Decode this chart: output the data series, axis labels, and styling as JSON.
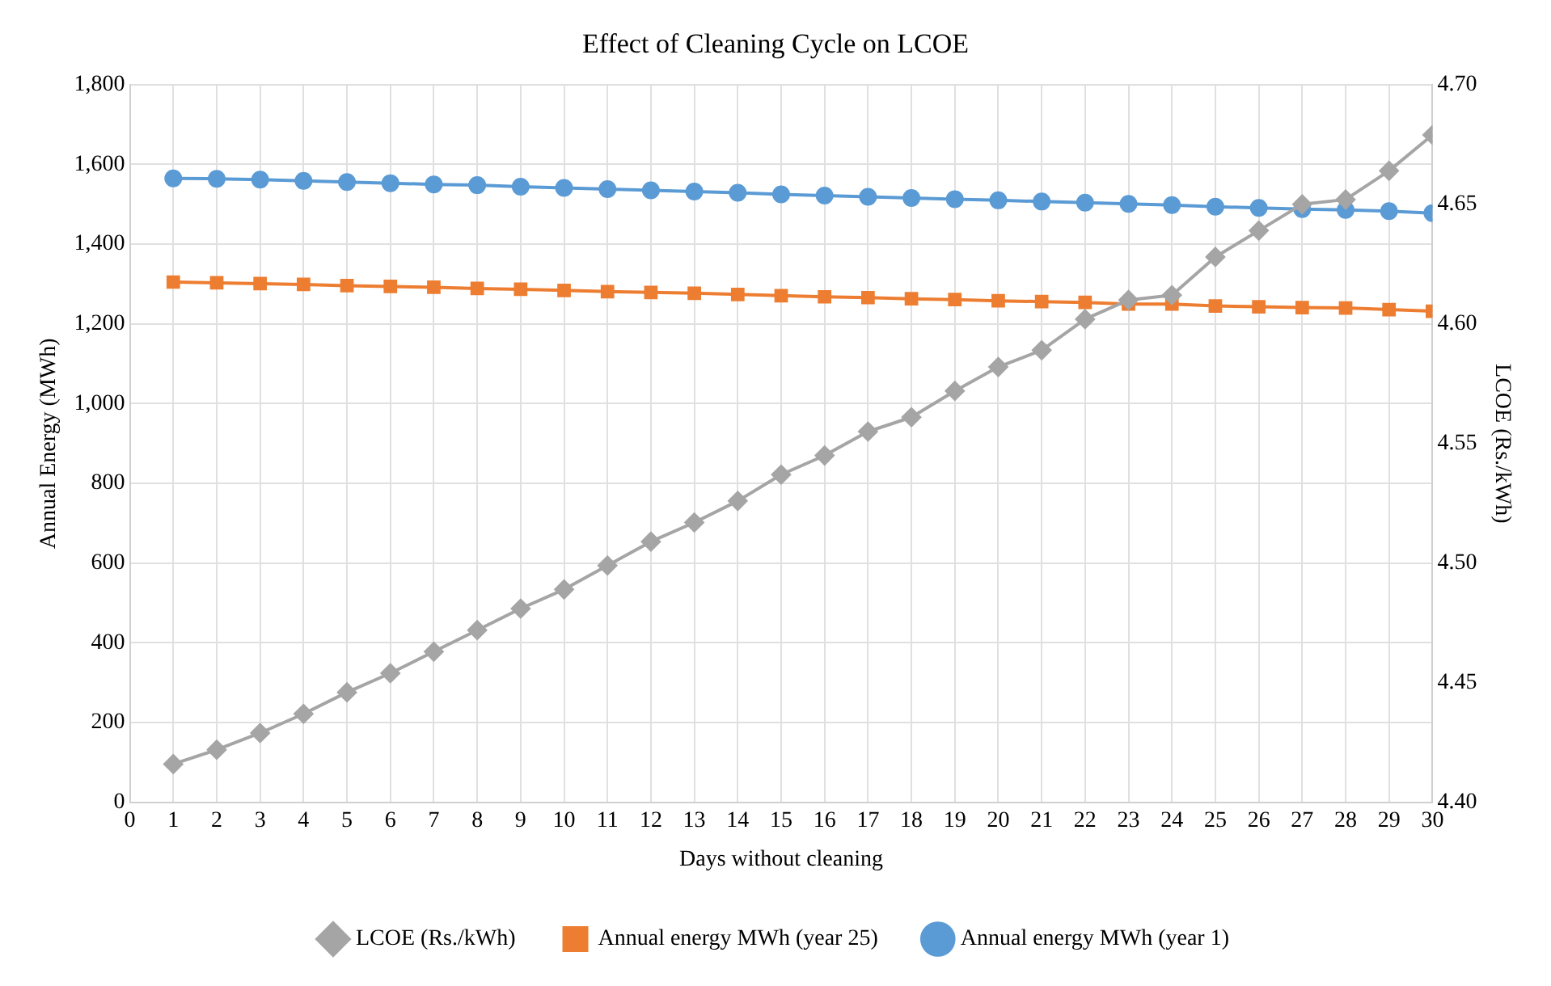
{
  "chart_data": {
    "type": "line",
    "title": "Effect of Cleaning Cycle on LCOE",
    "xlabel": "Days without cleaning",
    "ylabel": "Annual Energy (MWh)",
    "y2label": "LCOE (Rs./kWh)",
    "x": [
      1,
      2,
      3,
      4,
      5,
      6,
      7,
      8,
      9,
      10,
      11,
      12,
      13,
      14,
      15,
      16,
      17,
      18,
      19,
      20,
      21,
      22,
      23,
      24,
      25,
      26,
      27,
      28,
      29,
      30
    ],
    "xlim": [
      0,
      30
    ],
    "xticks": [
      0,
      1,
      2,
      3,
      4,
      5,
      6,
      7,
      8,
      9,
      10,
      11,
      12,
      13,
      14,
      15,
      16,
      17,
      18,
      19,
      20,
      21,
      22,
      23,
      24,
      25,
      26,
      27,
      28,
      29,
      30
    ],
    "ylim": [
      0,
      1800
    ],
    "yticks": [
      {
        "value": 0,
        "label": "0"
      },
      {
        "value": 200,
        "label": "200"
      },
      {
        "value": 400,
        "label": "400"
      },
      {
        "value": 600,
        "label": "600"
      },
      {
        "value": 800,
        "label": "800"
      },
      {
        "value": 1000,
        "label": "1,000"
      },
      {
        "value": 1200,
        "label": "1,200"
      },
      {
        "value": 1400,
        "label": "1,400"
      },
      {
        "value": 1600,
        "label": "1,600"
      },
      {
        "value": 1800,
        "label": "1,800"
      }
    ],
    "y2lim": [
      4.4,
      4.7
    ],
    "y2ticks": [
      {
        "value": 4.4,
        "label": "4.40"
      },
      {
        "value": 4.45,
        "label": "4.45"
      },
      {
        "value": 4.5,
        "label": "4.50"
      },
      {
        "value": 4.55,
        "label": "4.55"
      },
      {
        "value": 4.6,
        "label": "4.60"
      },
      {
        "value": 4.65,
        "label": "4.65"
      },
      {
        "value": 4.7,
        "label": "4.70"
      }
    ],
    "grid": true,
    "legend": "bottom",
    "series": [
      {
        "name": "Annual energy MWh (year 1)",
        "color": "#5b9bd5",
        "marker": "circle",
        "values": [
          1565,
          1564,
          1562,
          1559,
          1556,
          1553,
          1550,
          1548,
          1544,
          1541,
          1538,
          1535,
          1532,
          1529,
          1525,
          1522,
          1519,
          1516,
          1513,
          1510,
          1507,
          1504,
          1501,
          1498,
          1494,
          1491,
          1488,
          1486,
          1483,
          1478
        ]
      },
      {
        "name": "Annual energy MWh (year 25)",
        "color": "#ed7d31",
        "marker": "square",
        "values": [
          1305,
          1303,
          1301,
          1299,
          1296,
          1294,
          1292,
          1289,
          1287,
          1284,
          1281,
          1279,
          1277,
          1274,
          1271,
          1268,
          1266,
          1263,
          1261,
          1258,
          1256,
          1254,
          1250,
          1250,
          1245,
          1243,
          1241,
          1240,
          1236,
          1232
        ]
      },
      {
        "name": "LCOE (Rs./kWh)",
        "color": "#a5a5a5",
        "marker": "diamond",
        "axis": "y2",
        "values": [
          4.416,
          4.422,
          4.429,
          4.437,
          4.446,
          4.454,
          4.463,
          4.472,
          4.481,
          4.489,
          4.499,
          4.509,
          4.517,
          4.526,
          4.537,
          4.545,
          4.555,
          4.561,
          4.572,
          4.582,
          4.589,
          4.602,
          4.61,
          4.612,
          4.628,
          4.639,
          4.65,
          4.652,
          4.664,
          4.679
        ]
      }
    ]
  }
}
